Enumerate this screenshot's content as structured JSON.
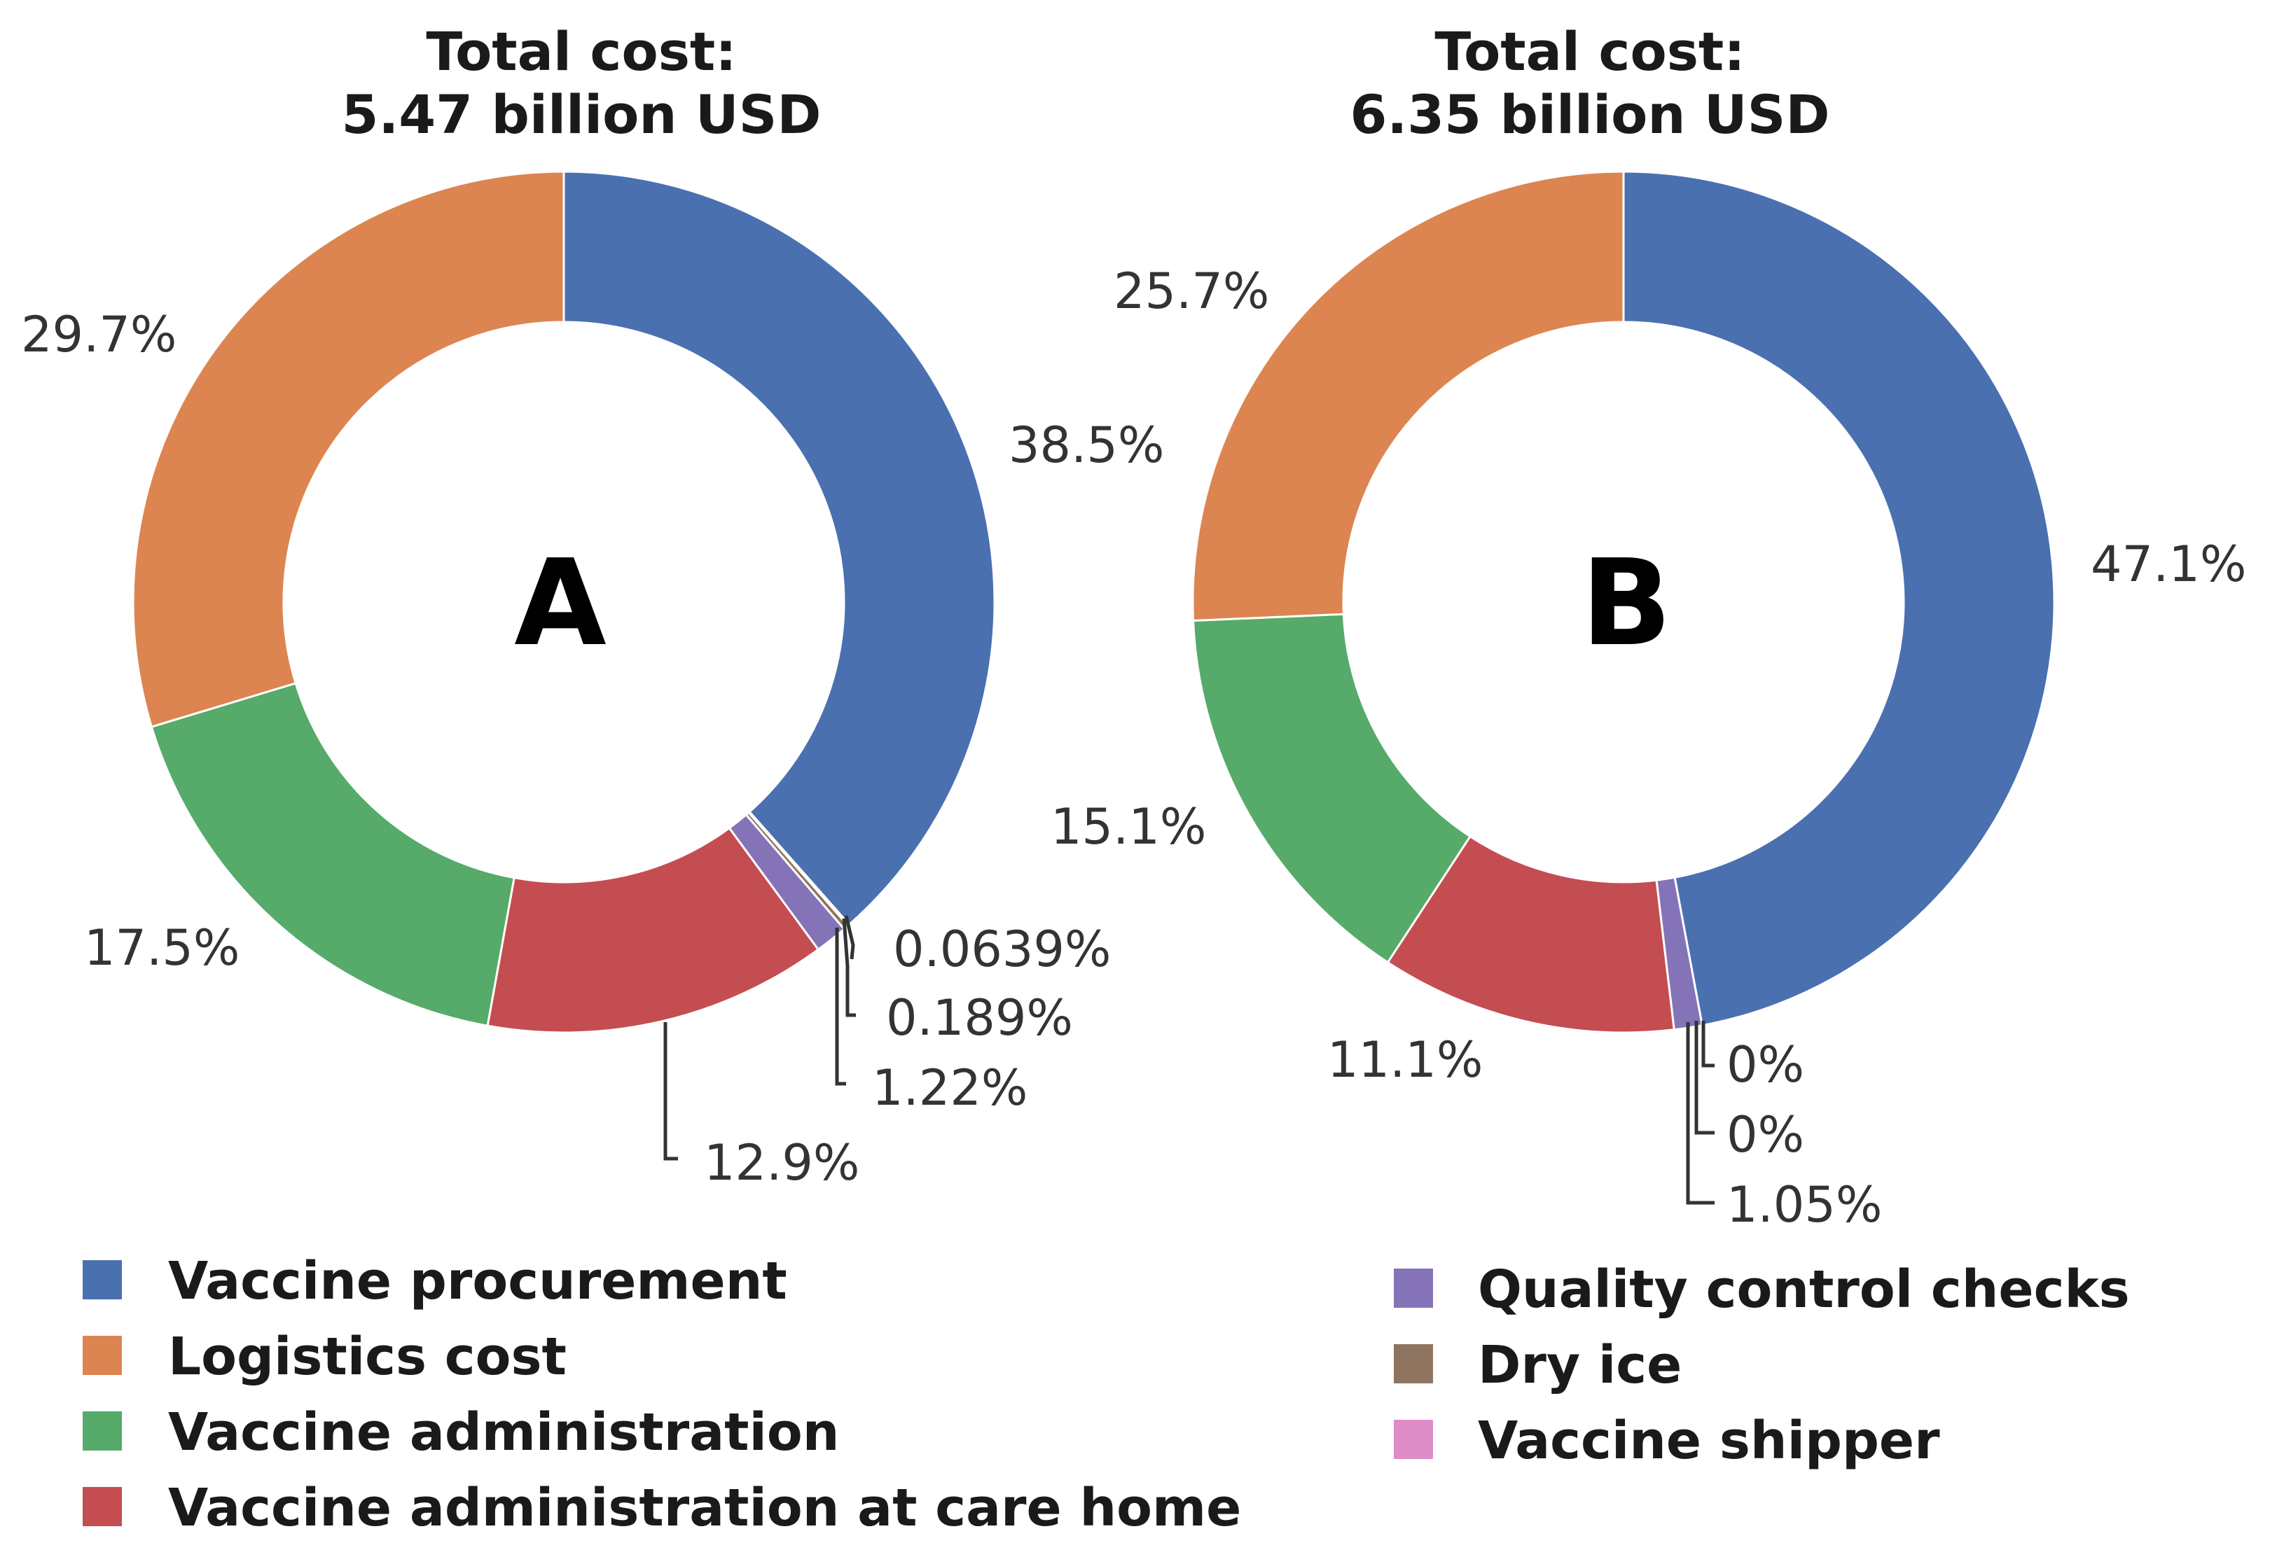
{
  "chart_data": [
    {
      "type": "pie",
      "variant": "donut",
      "center_label": "A",
      "title_line1": "Total cost:",
      "title_line2": "5.47 billion USD",
      "slices": [
        {
          "category": "Vaccine procurement",
          "value": 38.5,
          "label": "38.5%"
        },
        {
          "category": "Vaccine shipper",
          "value": 0.0639,
          "label": "0.0639%"
        },
        {
          "category": "Dry ice",
          "value": 0.189,
          "label": "0.189%"
        },
        {
          "category": "Quality control checks",
          "value": 1.22,
          "label": "1.22%"
        },
        {
          "category": "Vaccine administration at care home",
          "value": 12.9,
          "label": "12.9%"
        },
        {
          "category": "Vaccine administration",
          "value": 17.5,
          "label": "17.5%"
        },
        {
          "category": "Logistics cost",
          "value": 29.7,
          "label": "29.7%"
        }
      ]
    },
    {
      "type": "pie",
      "variant": "donut",
      "center_label": "B",
      "title_line1": "Total cost:",
      "title_line2": "6.35 billion USD",
      "slices": [
        {
          "category": "Vaccine procurement",
          "value": 47.1,
          "label": "47.1%"
        },
        {
          "category": "Vaccine shipper",
          "value": 0,
          "label": "0%"
        },
        {
          "category": "Dry ice",
          "value": 0,
          "label": "0%"
        },
        {
          "category": "Quality control checks",
          "value": 1.05,
          "label": "1.05%"
        },
        {
          "category": "Vaccine administration at care home",
          "value": 11.1,
          "label": "11.1%"
        },
        {
          "category": "Vaccine administration",
          "value": 15.1,
          "label": "15.1%"
        },
        {
          "category": "Logistics cost",
          "value": 25.7,
          "label": "25.7%"
        }
      ]
    }
  ],
  "legend": [
    {
      "label": "Vaccine procurement",
      "color": "#4a70b0"
    },
    {
      "label": "Logistics cost",
      "color": "#dc8551"
    },
    {
      "label": "Vaccine administration",
      "color": "#56aa6a"
    },
    {
      "label": "Vaccine administration at care home",
      "color": "#c44d52"
    },
    {
      "label": "Quality control checks",
      "color": "#8573b8"
    },
    {
      "label": "Dry ice",
      "color": "#8f7460"
    },
    {
      "label": "Vaccine shipper",
      "color": "#dd8cc8"
    }
  ]
}
